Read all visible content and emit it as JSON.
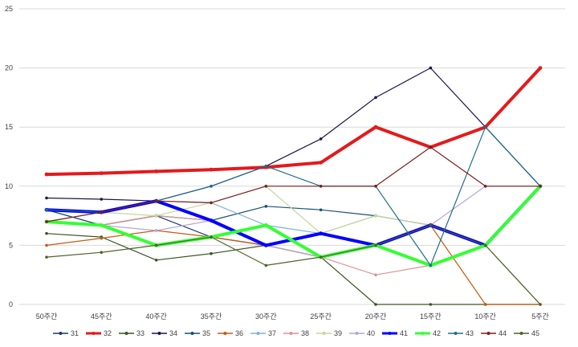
{
  "chart_data": {
    "type": "line",
    "title": "",
    "xlabel": "",
    "ylabel": "",
    "categories": [
      "50주간",
      "45주간",
      "40주간",
      "35주간",
      "30주간",
      "25주간",
      "20주간",
      "15주간",
      "10주간",
      "5주간"
    ],
    "ylim": [
      0,
      25
    ],
    "yticks": [
      "0",
      "5",
      "10",
      "15",
      "20",
      "25"
    ],
    "grid": true,
    "legend_position": "bottom",
    "series": [
      {
        "name": "31",
        "color": "#1f3864",
        "width": 1.2,
        "values": [
          8,
          6.7,
          7.5,
          5.7,
          5,
          4,
          5,
          6.7,
          5,
          10
        ]
      },
      {
        "name": "32",
        "color": "#e31a1c",
        "width": 4,
        "values": [
          11,
          11.1,
          11.25,
          11.4,
          11.6,
          12,
          15,
          13.3,
          15,
          20
        ]
      },
      {
        "name": "33",
        "color": "#375623",
        "width": 1.2,
        "values": [
          6,
          5.7,
          3.75,
          4.3,
          5,
          4,
          0,
          0,
          0,
          0
        ]
      },
      {
        "name": "34",
        "color": "#20124d",
        "width": 1.2,
        "values": [
          9,
          8.9,
          8.75,
          10,
          11.7,
          14,
          17.5,
          20,
          15,
          10
        ]
      },
      {
        "name": "35",
        "color": "#1b4f72",
        "width": 1.2,
        "values": [
          8,
          6.7,
          7.5,
          7.1,
          8.3,
          8,
          7.5,
          6.7,
          5,
          10
        ]
      },
      {
        "name": "36",
        "color": "#c55a11",
        "width": 1.2,
        "values": [
          5,
          5.6,
          6.25,
          5.7,
          5,
          4,
          5,
          6.7,
          0,
          0
        ]
      },
      {
        "name": "37",
        "color": "#7fb3d5",
        "width": 1.2,
        "values": [
          7,
          7.8,
          8.75,
          8.6,
          6.7,
          6,
          7.5,
          6.7,
          5,
          0
        ]
      },
      {
        "name": "38",
        "color": "#d99694",
        "width": 1.2,
        "values": [
          7,
          6.7,
          7.5,
          7.1,
          5,
          4,
          2.5,
          3.3,
          5,
          0
        ]
      },
      {
        "name": "39",
        "color": "#c4d79b",
        "width": 1.2,
        "values": [
          7,
          7.8,
          7.5,
          8.6,
          10,
          6,
          7.5,
          6.7,
          5,
          0
        ]
      },
      {
        "name": "40",
        "color": "#b4a7d6",
        "width": 1.2,
        "values": [
          7,
          6.7,
          6.25,
          7.1,
          5,
          4,
          5,
          6.7,
          10,
          10
        ]
      },
      {
        "name": "41",
        "color": "#0000ff",
        "width": 4,
        "values": [
          8,
          7.8,
          8.75,
          7.1,
          5,
          6,
          5,
          6.7,
          5,
          10
        ]
      },
      {
        "name": "42",
        "color": "#33ff33",
        "width": 4,
        "values": [
          7,
          6.7,
          5,
          5.7,
          6.7,
          4,
          5,
          3.3,
          5,
          10
        ]
      },
      {
        "name": "43",
        "color": "#1f6e8c",
        "width": 1.2,
        "values": [
          8,
          7.8,
          8.75,
          10,
          11.7,
          10,
          10,
          3.3,
          15,
          10
        ]
      },
      {
        "name": "44",
        "color": "#7f1d1d",
        "width": 1.2,
        "values": [
          7,
          7.8,
          8.75,
          8.6,
          10,
          10,
          10,
          13.3,
          10,
          10
        ]
      },
      {
        "name": "45",
        "color": "#4f6228",
        "width": 1.2,
        "values": [
          4,
          4.4,
          5,
          5.7,
          3.3,
          4,
          5,
          6.7,
          5,
          0
        ]
      }
    ]
  }
}
